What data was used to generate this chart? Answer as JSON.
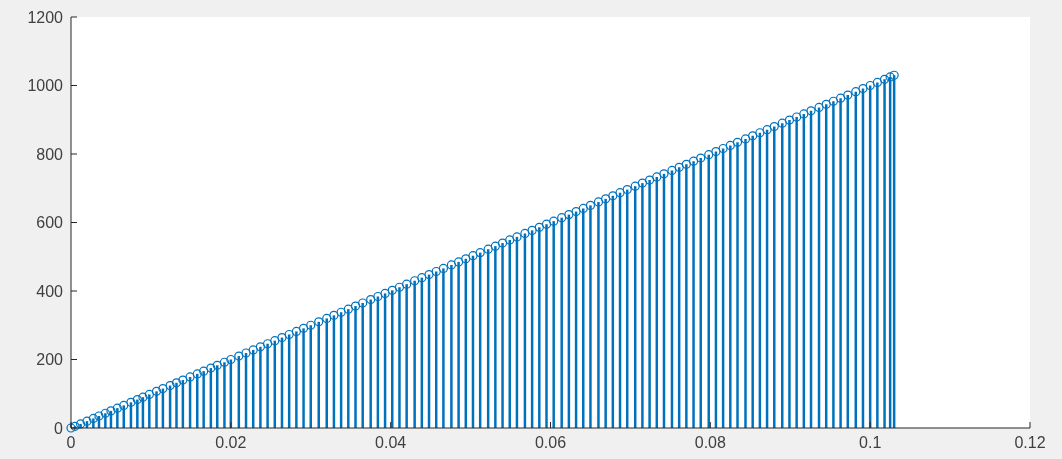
{
  "chart_data": {
    "type": "lollipop",
    "x": [
      0,
      0.0005,
      0.0012,
      0.002,
      0.0028,
      0.0035,
      0.0043,
      0.005,
      0.0058,
      0.0066,
      0.0075,
      0.0083,
      0.009,
      0.0098,
      0.0107,
      0.0115,
      0.0124,
      0.0132,
      0.014,
      0.0149,
      0.0158,
      0.0166,
      0.0175,
      0.0183,
      0.0192,
      0.02,
      0.021,
      0.0219,
      0.0228,
      0.0237,
      0.0246,
      0.0255,
      0.0264,
      0.0273,
      0.0282,
      0.0291,
      0.03,
      0.031,
      0.032,
      0.0329,
      0.0338,
      0.0347,
      0.0356,
      0.0365,
      0.0375,
      0.0384,
      0.0393,
      0.0402,
      0.0411,
      0.042,
      0.043,
      0.0439,
      0.0448,
      0.0457,
      0.0466,
      0.0476,
      0.0485,
      0.0494,
      0.0503,
      0.0512,
      0.0522,
      0.0531,
      0.054,
      0.0549,
      0.0558,
      0.0568,
      0.0577,
      0.0586,
      0.0595,
      0.0604,
      0.0614,
      0.0623,
      0.0632,
      0.0641,
      0.065,
      0.066,
      0.0669,
      0.0678,
      0.0687,
      0.0696,
      0.0706,
      0.0715,
      0.0724,
      0.0733,
      0.0742,
      0.0752,
      0.0761,
      0.077,
      0.0779,
      0.0788,
      0.0798,
      0.0807,
      0.0816,
      0.0825,
      0.0834,
      0.0844,
      0.0853,
      0.0862,
      0.0871,
      0.088,
      0.089,
      0.0899,
      0.0908,
      0.0917,
      0.0926,
      0.0936,
      0.0945,
      0.0954,
      0.0963,
      0.0972,
      0.0982,
      0.0991,
      0.1,
      0.1009,
      0.1018,
      0.1025,
      0.103
    ],
    "series": [
      {
        "color": "#0072bd",
        "values": [
          0,
          5,
          12,
          20,
          28,
          35,
          43,
          50,
          58,
          66,
          75,
          83,
          90,
          98,
          107,
          115,
          124,
          132,
          140,
          149,
          158,
          166,
          175,
          183,
          192,
          200,
          210,
          219,
          228,
          237,
          246,
          255,
          264,
          273,
          282,
          291,
          300,
          310,
          320,
          329,
          338,
          347,
          356,
          365,
          375,
          384,
          393,
          402,
          411,
          420,
          430,
          439,
          448,
          457,
          466,
          476,
          485,
          494,
          503,
          512,
          522,
          531,
          540,
          549,
          558,
          568,
          577,
          586,
          595,
          604,
          614,
          623,
          632,
          641,
          650,
          660,
          669,
          678,
          687,
          696,
          706,
          715,
          724,
          733,
          742,
          752,
          761,
          770,
          779,
          788,
          798,
          807,
          816,
          825,
          834,
          844,
          853,
          862,
          871,
          880,
          890,
          899,
          908,
          917,
          926,
          936,
          945,
          954,
          963,
          972,
          982,
          991,
          1000,
          1009,
          1018,
          1025,
          1030
        ]
      }
    ],
    "xlim": [
      0,
      0.12
    ],
    "xticks": [
      0,
      0.02,
      0.04,
      0.06,
      0.08,
      0.1,
      0.12
    ],
    "ylim": [
      0,
      1200
    ],
    "yticks": [
      0,
      200,
      400,
      600,
      800,
      1000,
      1200
    ],
    "marker": "circle",
    "grid": false
  }
}
